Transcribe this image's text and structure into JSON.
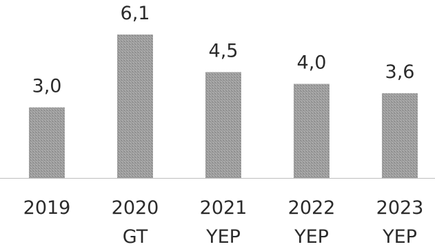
{
  "chart_data": {
    "type": "bar",
    "categories": [
      [
        "2019"
      ],
      [
        "2020",
        "GT"
      ],
      [
        "2021",
        "YEP"
      ],
      [
        "2022",
        "YEP"
      ],
      [
        "2023",
        "YEP"
      ]
    ],
    "values": [
      3.0,
      6.1,
      4.5,
      4.0,
      3.6
    ],
    "value_labels": [
      "3,0",
      "6,1",
      "4,5",
      "4,0",
      "3,6"
    ],
    "title": "",
    "xlabel": "",
    "ylabel": "",
    "ylim": [
      0,
      6.1
    ],
    "grid": false,
    "legend": "none",
    "bar_color": "#9a9a9a",
    "baseline_color": "#bdbdbd"
  }
}
